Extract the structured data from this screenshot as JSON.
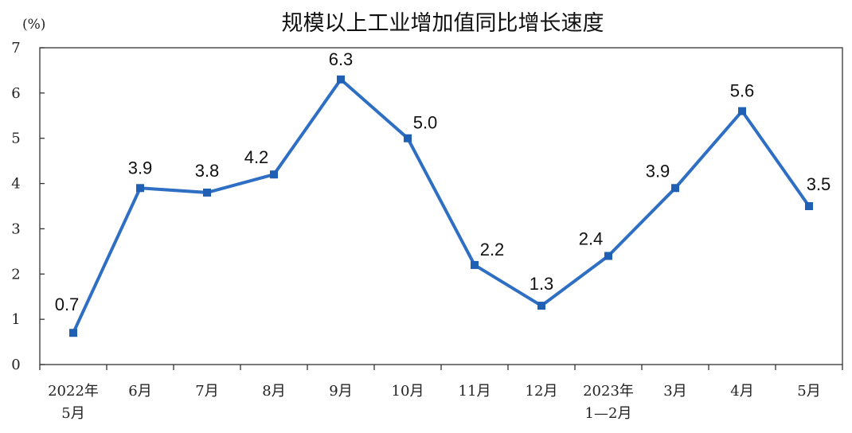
{
  "colors": {
    "series": "#2e6fc4",
    "marker": "#1f5fb4"
  },
  "chart_data": {
    "type": "line",
    "title": "规模以上工业增加值同比增长速度",
    "unit_label": "(%)",
    "ylim": [
      0,
      7
    ],
    "yticks": [
      "0",
      "1",
      "2",
      "3",
      "4",
      "5",
      "6",
      "7"
    ],
    "categories": [
      [
        "2022年",
        "5月"
      ],
      [
        "6月"
      ],
      [
        "7月"
      ],
      [
        "8月"
      ],
      [
        "9月"
      ],
      [
        "10月"
      ],
      [
        "11月"
      ],
      [
        "12月"
      ],
      [
        "2023年",
        "1—2月"
      ],
      [
        "3月"
      ],
      [
        "4月"
      ],
      [
        "5月"
      ]
    ],
    "series": [
      {
        "values": [
          0.7,
          3.9,
          3.8,
          4.2,
          6.3,
          5.0,
          2.2,
          1.3,
          2.4,
          3.9,
          5.6,
          3.5
        ],
        "data_labels": [
          "0.7",
          "3.9",
          "3.8",
          "4.2",
          "6.3",
          "5.0",
          "2.2",
          "1.3",
          "2.4",
          "3.9",
          "5.6",
          "3.5"
        ]
      }
    ],
    "grid": false,
    "marker": "square",
    "data_labels_shown": true
  }
}
